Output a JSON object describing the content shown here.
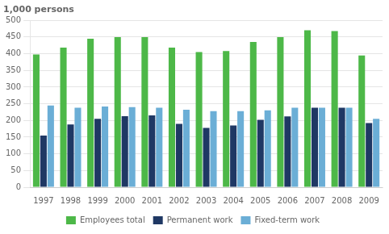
{
  "chart_data": {
    "type": "bar",
    "ylabel": "1,000 persons",
    "categories": [
      1997,
      1998,
      1999,
      2000,
      2001,
      2002,
      2003,
      2004,
      2005,
      2006,
      2007,
      2008,
      2009
    ],
    "series": [
      {
        "name": "Employees total",
        "color": "#4db848",
        "values": [
          398,
          418,
          445,
          450,
          450,
          418,
          405,
          408,
          435,
          450,
          470,
          468,
          395
        ]
      },
      {
        "name": "Permanent work",
        "color": "#1f3864",
        "values": [
          155,
          188,
          205,
          213,
          215,
          190,
          178,
          185,
          202,
          212,
          238,
          238,
          192
        ]
      },
      {
        "name": "Fixed-term work",
        "color": "#6baed6",
        "values": [
          245,
          238,
          242,
          240,
          238,
          232,
          228,
          228,
          230,
          238,
          238,
          238,
          205
        ]
      }
    ],
    "ylim": [
      0,
      500
    ],
    "yticks": [
      0,
      50,
      100,
      150,
      200,
      250,
      300,
      350,
      400,
      450,
      500
    ],
    "grid": true,
    "legend": "bottom"
  }
}
